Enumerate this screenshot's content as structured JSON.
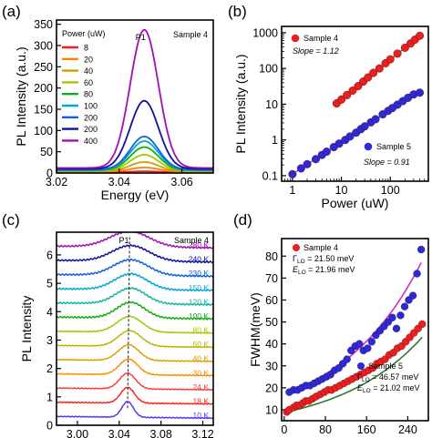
{
  "colors": {
    "a_series": [
      "#ff1a1a",
      "#ff8000",
      "#c8a000",
      "#a0c800",
      "#10b010",
      "#00a8d8",
      "#1060e0",
      "#1010a0",
      "#a010b0"
    ],
    "red_marker": "#e82020",
    "blue_marker": "#2a2ad8",
    "fit_line_a": "#2a7a2a",
    "fit_line_b": "#d030c0"
  },
  "chart_data": [
    {
      "id": "a",
      "panel_label": "(a)",
      "type": "line",
      "xlabel": "Energy (eV)",
      "ylabel": "PL Intensity (a.u.)",
      "xlim": [
        3.02,
        3.07
      ],
      "ylim": [
        0,
        360
      ],
      "xticks": [
        3.02,
        3.04,
        3.06
      ],
      "yticks": [
        0,
        50,
        100,
        150,
        200,
        250,
        300,
        350
      ],
      "legend_title": "Power (uW)",
      "annotation_peak": "P1",
      "annotation_sample": "Sample 4",
      "series": [
        {
          "name": "8",
          "peak": 2
        },
        {
          "name": "20",
          "peak": 10
        },
        {
          "name": "40",
          "peak": 22
        },
        {
          "name": "60",
          "peak": 38
        },
        {
          "name": "80",
          "peak": 55
        },
        {
          "name": "100",
          "peak": 68
        },
        {
          "name": "200",
          "peak": 78
        },
        {
          "name": "200",
          "peak": 160
        },
        {
          "name": "400",
          "peak": 325
        }
      ],
      "peak_position": 3.048,
      "peak_width": 0.0045,
      "baselines": [
        2,
        3,
        4,
        5,
        6,
        7,
        8,
        10,
        12
      ]
    },
    {
      "id": "b",
      "panel_label": "(b)",
      "type": "scatter",
      "xlabel": "Power (uW)",
      "ylabel": "PL Intensity (a.u.)",
      "xscale": "log",
      "yscale": "log",
      "xlim": [
        0.6,
        600
      ],
      "ylim": [
        0.07,
        1500
      ],
      "xticks": [
        1,
        10,
        100
      ],
      "xtick_labels": [
        "1",
        "10",
        "100"
      ],
      "yticks": [
        0.1,
        1,
        10,
        100,
        1000
      ],
      "ytick_labels": [
        "0.1",
        "1",
        "10",
        "100",
        "1000"
      ],
      "series": [
        {
          "name": "Sample 4",
          "slope_label": "Slope = 1.12",
          "x": [
            8,
            10,
            13,
            17,
            22,
            28,
            35,
            45,
            60,
            80,
            100,
            140,
            200,
            260,
            320,
            400
          ],
          "y": [
            10.5,
            13.5,
            18,
            24,
            32,
            43,
            56,
            75,
            100,
            140,
            180,
            260,
            380,
            500,
            640,
            820
          ]
        },
        {
          "name": "Sample 5",
          "slope_label": "Slope = 0.91",
          "x": [
            1,
            1.5,
            2,
            3,
            4,
            5,
            7,
            9,
            12,
            15,
            20,
            25,
            30,
            40,
            50,
            70,
            90,
            110,
            140,
            180,
            230,
            300,
            400
          ],
          "y": [
            0.11,
            0.16,
            0.21,
            0.29,
            0.38,
            0.47,
            0.63,
            0.79,
            1.0,
            1.25,
            1.6,
            2.0,
            2.4,
            3.1,
            3.8,
            5.2,
            6.5,
            7.8,
            9.7,
            12.2,
            15.1,
            18.8,
            21.0
          ]
        }
      ]
    },
    {
      "id": "c",
      "panel_label": "(c)",
      "type": "line",
      "xlabel": "Energy (eV)",
      "ylabel": "PL Intensity",
      "xlim": [
        2.98,
        3.13
      ],
      "ylim": [
        0,
        6.8
      ],
      "xticks": [
        3.0,
        3.04,
        3.08,
        3.12
      ],
      "xtick_labels": [
        "3.00",
        "3.04",
        "3.08",
        "3.12"
      ],
      "yticks": [
        0,
        1,
        2,
        3,
        4,
        5,
        6
      ],
      "annotation_peak": "P1",
      "annotation_sample": "Sample 4",
      "series": [
        {
          "name": "10 K",
          "color": "#6030ff",
          "offset": 0.0,
          "peak_x": 3.048
        },
        {
          "name": "18 K",
          "color": "#ff2020",
          "offset": 0.5,
          "peak_x": 3.048
        },
        {
          "name": "24 K",
          "color": "#ff3c3c",
          "offset": 1.0,
          "peak_x": 3.048
        },
        {
          "name": "30 K",
          "color": "#ff8c00",
          "offset": 1.5,
          "peak_x": 3.049
        },
        {
          "name": "40 K",
          "color": "#d8a000",
          "offset": 2.0,
          "peak_x": 3.049
        },
        {
          "name": "60 K",
          "color": "#b8b800",
          "offset": 2.5,
          "peak_x": 3.05
        },
        {
          "name": "80 K",
          "color": "#a0c800",
          "offset": 3.0,
          "peak_x": 3.05
        },
        {
          "name": "100 K",
          "color": "#10b010",
          "offset": 3.5,
          "peak_x": 3.051
        },
        {
          "name": "120 K",
          "color": "#10b8a0",
          "offset": 4.0,
          "peak_x": 3.051
        },
        {
          "name": "150 K",
          "color": "#00a8d8",
          "offset": 4.5,
          "peak_x": 3.051
        },
        {
          "name": "230 K",
          "color": "#1060e0",
          "offset": 5.0,
          "peak_x": 3.051
        },
        {
          "name": "240 K",
          "color": "#1010a0",
          "offset": 5.5,
          "peak_x": 3.051
        },
        {
          "name": "280 K",
          "color": "#a010b0",
          "offset": 6.0,
          "peak_x": 3.05
        }
      ]
    },
    {
      "id": "d",
      "panel_label": "(d)",
      "type": "scatter",
      "xlabel": "Temperature (K)",
      "ylabel": "FWHM(meV)",
      "xlim": [
        -5,
        280
      ],
      "ylim": [
        5,
        88
      ],
      "xticks": [
        0,
        80,
        160,
        240
      ],
      "yticks": [
        10,
        20,
        30,
        40,
        50,
        60,
        70,
        80
      ],
      "series": [
        {
          "name": "Sample 4",
          "gamma_label": "Γ",
          "gamma_sub": "LO",
          "gamma_value": " = 21.50 meV",
          "e_label": "E",
          "e_sub": "LO",
          "e_value": " = 21.96 meV",
          "x": [
            5,
            10,
            18,
            24,
            30,
            36,
            42,
            48,
            55,
            62,
            70,
            78,
            85,
            92,
            100,
            108,
            116,
            124,
            132,
            140,
            148,
            156,
            164,
            172,
            180,
            188,
            196,
            204,
            212,
            220,
            228,
            236,
            244,
            252,
            260,
            268
          ],
          "y": [
            9,
            10,
            11,
            12,
            12,
            13,
            14,
            14,
            15,
            16,
            17,
            18,
            19,
            19,
            20,
            21,
            22,
            23,
            24,
            25,
            26,
            27,
            28,
            29,
            31,
            32,
            33,
            35,
            36,
            38,
            39,
            41,
            43,
            45,
            47,
            49
          ]
        },
        {
          "name": "Sample 5",
          "gamma_label": "Γ",
          "gamma_sub": "LO",
          "gamma_value": " = 46.57 meV",
          "e_label": "E",
          "e_sub": "LO",
          "e_value": " = 21.02 meV",
          "x": [
            10,
            18,
            26,
            34,
            42,
            50,
            58,
            66,
            74,
            82,
            90,
            98,
            106,
            114,
            122,
            130,
            138,
            146,
            154,
            162,
            170,
            178,
            186,
            194,
            202,
            210,
            218,
            226,
            234,
            242,
            250,
            258,
            266
          ],
          "y": [
            18,
            19,
            19,
            20,
            21,
            21,
            22,
            23,
            24,
            25,
            26,
            28,
            29,
            31,
            33,
            37,
            39,
            40,
            37,
            38,
            41,
            44,
            46,
            48,
            50,
            52,
            47,
            53,
            57,
            60,
            62,
            72,
            83
          ]
        }
      ]
    }
  ]
}
